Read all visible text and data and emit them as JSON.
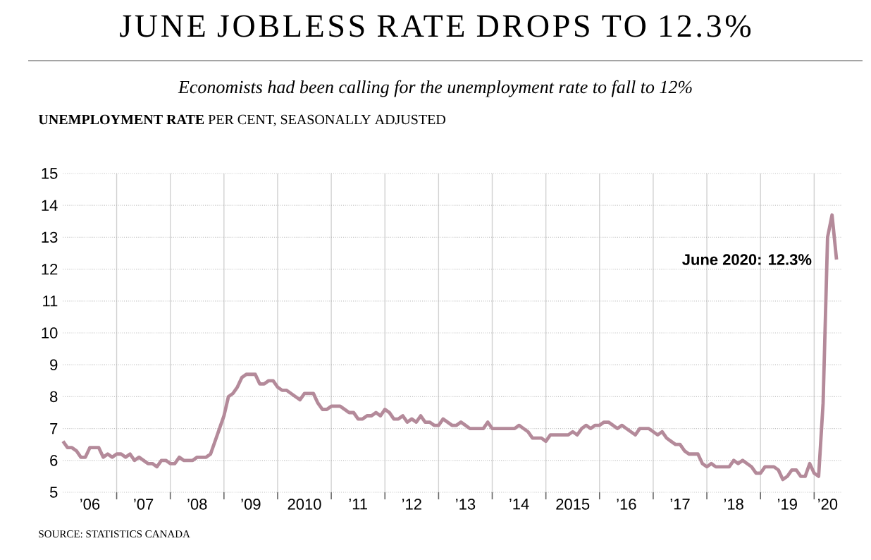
{
  "chart_data": {
    "type": "line",
    "title": "JUNE JOBLESS RATE DROPS TO 12.3%",
    "subtitle": "Economists had been calling for the unemployment rate to fall to 12%",
    "ylabel": "**UNEMPLOYMENT RATE** PER CENT, SEASONALLY ADJUSTED",
    "x": [
      "2006-01",
      "2006-02",
      "2006-03",
      "2006-04",
      "2006-05",
      "2006-06",
      "2006-07",
      "2006-08",
      "2006-09",
      "2006-10",
      "2006-11",
      "2006-12",
      "2007-01",
      "2007-02",
      "2007-03",
      "2007-04",
      "2007-05",
      "2007-06",
      "2007-07",
      "2007-08",
      "2007-09",
      "2007-10",
      "2007-11",
      "2007-12",
      "2008-01",
      "2008-02",
      "2008-03",
      "2008-04",
      "2008-05",
      "2008-06",
      "2008-07",
      "2008-08",
      "2008-09",
      "2008-10",
      "2008-11",
      "2008-12",
      "2009-01",
      "2009-02",
      "2009-03",
      "2009-04",
      "2009-05",
      "2009-06",
      "2009-07",
      "2009-08",
      "2009-09",
      "2009-10",
      "2009-11",
      "2009-12",
      "2010-01",
      "2010-02",
      "2010-03",
      "2010-04",
      "2010-05",
      "2010-06",
      "2010-07",
      "2010-08",
      "2010-09",
      "2010-10",
      "2010-11",
      "2010-12",
      "2011-01",
      "2011-02",
      "2011-03",
      "2011-04",
      "2011-05",
      "2011-06",
      "2011-07",
      "2011-08",
      "2011-09",
      "2011-10",
      "2011-11",
      "2011-12",
      "2012-01",
      "2012-02",
      "2012-03",
      "2012-04",
      "2012-05",
      "2012-06",
      "2012-07",
      "2012-08",
      "2012-09",
      "2012-10",
      "2012-11",
      "2012-12",
      "2013-01",
      "2013-02",
      "2013-03",
      "2013-04",
      "2013-05",
      "2013-06",
      "2013-07",
      "2013-08",
      "2013-09",
      "2013-10",
      "2013-11",
      "2013-12",
      "2014-01",
      "2014-02",
      "2014-03",
      "2014-04",
      "2014-05",
      "2014-06",
      "2014-07",
      "2014-08",
      "2014-09",
      "2014-10",
      "2014-11",
      "2014-12",
      "2015-01",
      "2015-02",
      "2015-03",
      "2015-04",
      "2015-05",
      "2015-06",
      "2015-07",
      "2015-08",
      "2015-09",
      "2015-10",
      "2015-11",
      "2015-12",
      "2016-01",
      "2016-02",
      "2016-03",
      "2016-04",
      "2016-05",
      "2016-06",
      "2016-07",
      "2016-08",
      "2016-09",
      "2016-10",
      "2016-11",
      "2016-12",
      "2017-01",
      "2017-02",
      "2017-03",
      "2017-04",
      "2017-05",
      "2017-06",
      "2017-07",
      "2017-08",
      "2017-09",
      "2017-10",
      "2017-11",
      "2017-12",
      "2018-01",
      "2018-02",
      "2018-03",
      "2018-04",
      "2018-05",
      "2018-06",
      "2018-07",
      "2018-08",
      "2018-09",
      "2018-10",
      "2018-11",
      "2018-12",
      "2019-01",
      "2019-02",
      "2019-03",
      "2019-04",
      "2019-05",
      "2019-06",
      "2019-07",
      "2019-08",
      "2019-09",
      "2019-10",
      "2019-11",
      "2019-12",
      "2020-01",
      "2020-02",
      "2020-03",
      "2020-04",
      "2020-05",
      "2020-06"
    ],
    "values": [
      6.6,
      6.4,
      6.4,
      6.3,
      6.1,
      6.1,
      6.4,
      6.4,
      6.4,
      6.1,
      6.2,
      6.1,
      6.2,
      6.2,
      6.1,
      6.2,
      6.0,
      6.1,
      6.0,
      5.9,
      5.9,
      5.8,
      6.0,
      6.0,
      5.9,
      5.9,
      6.1,
      6.0,
      6.0,
      6.0,
      6.1,
      6.1,
      6.1,
      6.2,
      6.6,
      7.0,
      7.4,
      8.0,
      8.1,
      8.3,
      8.6,
      8.7,
      8.7,
      8.7,
      8.4,
      8.4,
      8.5,
      8.5,
      8.3,
      8.2,
      8.2,
      8.1,
      8.0,
      7.9,
      8.1,
      8.1,
      8.1,
      7.8,
      7.6,
      7.6,
      7.7,
      7.7,
      7.7,
      7.6,
      7.5,
      7.5,
      7.3,
      7.3,
      7.4,
      7.4,
      7.5,
      7.4,
      7.6,
      7.5,
      7.3,
      7.3,
      7.4,
      7.2,
      7.3,
      7.2,
      7.4,
      7.2,
      7.2,
      7.1,
      7.1,
      7.3,
      7.2,
      7.1,
      7.1,
      7.2,
      7.1,
      7.0,
      7.0,
      7.0,
      7.0,
      7.2,
      7.0,
      7.0,
      7.0,
      7.0,
      7.0,
      7.0,
      7.1,
      7.0,
      6.9,
      6.7,
      6.7,
      6.7,
      6.6,
      6.8,
      6.8,
      6.8,
      6.8,
      6.8,
      6.9,
      6.8,
      7.0,
      7.1,
      7.0,
      7.1,
      7.1,
      7.2,
      7.2,
      7.1,
      7.0,
      7.1,
      7.0,
      6.9,
      6.8,
      7.0,
      7.0,
      7.0,
      6.9,
      6.8,
      6.9,
      6.7,
      6.6,
      6.5,
      6.5,
      6.3,
      6.2,
      6.2,
      6.2,
      5.9,
      5.8,
      5.9,
      5.8,
      5.8,
      5.8,
      5.8,
      6.0,
      5.9,
      6.0,
      5.9,
      5.8,
      5.6,
      5.6,
      5.8,
      5.8,
      5.8,
      5.7,
      5.4,
      5.5,
      5.7,
      5.7,
      5.5,
      5.5,
      5.9,
      5.6,
      5.5,
      7.8,
      13.0,
      13.7,
      12.3
    ],
    "color": "#b48a9a",
    "xlim": [
      "2006-01",
      "2020-07"
    ],
    "xticks": [
      {
        "value": "2006-07",
        "label": "’06"
      },
      {
        "value": "2007-01",
        "label": null
      },
      {
        "value": "2007-07",
        "label": "’07"
      },
      {
        "value": "2008-01",
        "label": null
      },
      {
        "value": "2008-07",
        "label": "’08"
      },
      {
        "value": "2009-01",
        "label": null
      },
      {
        "value": "2009-07",
        "label": "’09"
      },
      {
        "value": "2010-01",
        "label": null
      },
      {
        "value": "2010-07",
        "label": "2010"
      },
      {
        "value": "2011-01",
        "label": null
      },
      {
        "value": "2011-07",
        "label": "’11"
      },
      {
        "value": "2012-01",
        "label": null
      },
      {
        "value": "2012-07",
        "label": "’12"
      },
      {
        "value": "2013-01",
        "label": null
      },
      {
        "value": "2013-07",
        "label": "’13"
      },
      {
        "value": "2014-01",
        "label": null
      },
      {
        "value": "2014-07",
        "label": "’14"
      },
      {
        "value": "2015-01",
        "label": null
      },
      {
        "value": "2015-07",
        "label": "2015"
      },
      {
        "value": "2016-01",
        "label": null
      },
      {
        "value": "2016-07",
        "label": "’16"
      },
      {
        "value": "2017-01",
        "label": null
      },
      {
        "value": "2017-07",
        "label": "’17"
      },
      {
        "value": "2018-01",
        "label": null
      },
      {
        "value": "2018-07",
        "label": "’18"
      },
      {
        "value": "2019-01",
        "label": null
      },
      {
        "value": "2019-07",
        "label": "’19"
      },
      {
        "value": "2020-01",
        "label": null
      },
      {
        "value": "2020-04",
        "label": "’20"
      }
    ],
    "ylim": [
      5,
      15
    ],
    "yticks": [
      5,
      6,
      7,
      8,
      9,
      10,
      11,
      12,
      13,
      14,
      15
    ],
    "grid": true,
    "annotations": [
      {
        "text": "June 2020: 12.3%",
        "x": "2020-06",
        "y": 12.3
      },
      "SOURCE: STATISTICS CANADA"
    ]
  }
}
